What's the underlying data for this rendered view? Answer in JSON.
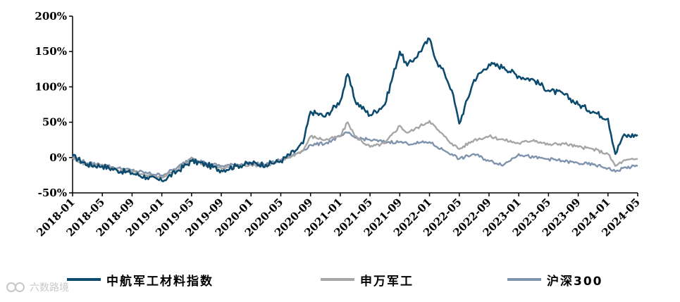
{
  "chart_data": {
    "type": "line",
    "title": "",
    "xlabel": "",
    "ylabel": "",
    "ylim": [
      -50,
      200
    ],
    "yticks": [
      "-50%",
      "0%",
      "50%",
      "100%",
      "150%",
      "200%"
    ],
    "ytick_values": [
      -50,
      0,
      50,
      100,
      150,
      200
    ],
    "xticks": [
      "2018-01",
      "2018-05",
      "2018-09",
      "2019-01",
      "2019-05",
      "2019-09",
      "2020-01",
      "2020-05",
      "2020-09",
      "2021-01",
      "2021-05",
      "2021-09",
      "2022-01",
      "2022-05",
      "2022-09",
      "2023-01",
      "2023-05",
      "2023-09",
      "2024-01",
      "2024-05"
    ],
    "x": [
      "2018-01",
      "2018-03",
      "2018-05",
      "2018-07",
      "2018-09",
      "2018-11",
      "2019-01",
      "2019-03",
      "2019-05",
      "2019-07",
      "2019-09",
      "2019-11",
      "2020-01",
      "2020-03",
      "2020-05",
      "2020-07",
      "2020-08",
      "2020-09",
      "2020-11",
      "2021-01",
      "2021-02",
      "2021-03",
      "2021-05",
      "2021-07",
      "2021-09",
      "2021-10",
      "2021-11",
      "2022-01",
      "2022-02",
      "2022-03",
      "2022-04",
      "2022-05",
      "2022-07",
      "2022-09",
      "2022-11",
      "2023-01",
      "2023-03",
      "2023-05",
      "2023-07",
      "2023-09",
      "2023-11",
      "2024-01",
      "2024-02",
      "2024-03",
      "2024-05"
    ],
    "series": [
      {
        "name": "中航军工材料指数",
        "color": "#0c4a6e",
        "values": [
          2,
          -10,
          -12,
          -18,
          -22,
          -28,
          -33,
          -20,
          -5,
          -10,
          -18,
          -12,
          -8,
          -10,
          -5,
          10,
          20,
          65,
          58,
          80,
          118,
          80,
          60,
          75,
          150,
          130,
          140,
          168,
          135,
          120,
          95,
          48,
          110,
          132,
          128,
          115,
          110,
          95,
          90,
          75,
          65,
          55,
          5,
          30,
          32
        ]
      },
      {
        "name": "申万军工",
        "color": "#a6a6a6",
        "values": [
          0,
          -12,
          -10,
          -18,
          -20,
          -25,
          -28,
          -18,
          -2,
          -12,
          -15,
          -12,
          -10,
          -12,
          -5,
          5,
          10,
          30,
          25,
          30,
          50,
          30,
          15,
          20,
          45,
          35,
          40,
          52,
          40,
          30,
          20,
          12,
          25,
          30,
          25,
          20,
          25,
          18,
          20,
          15,
          12,
          5,
          -12,
          -5,
          -2
        ]
      },
      {
        "name": "沪深300",
        "color": "#7f93ad",
        "values": [
          2,
          -8,
          -10,
          -15,
          -18,
          -22,
          -25,
          -15,
          0,
          -8,
          -12,
          -10,
          -8,
          -10,
          -3,
          5,
          10,
          18,
          20,
          30,
          35,
          28,
          25,
          22,
          22,
          20,
          20,
          22,
          15,
          10,
          5,
          -2,
          5,
          -5,
          -10,
          5,
          0,
          -2,
          -5,
          -8,
          -10,
          -15,
          -20,
          -15,
          -12
        ]
      }
    ],
    "grid": false,
    "legend_position": "bottom"
  },
  "legend": {
    "items": [
      {
        "label": "中航军工材料指数",
        "color": "#0c4a6e"
      },
      {
        "label": "申万军工",
        "color": "#a6a6a6"
      },
      {
        "label": "沪深300",
        "color": "#7f93ad"
      }
    ]
  },
  "watermark": {
    "text": "六数路境"
  }
}
